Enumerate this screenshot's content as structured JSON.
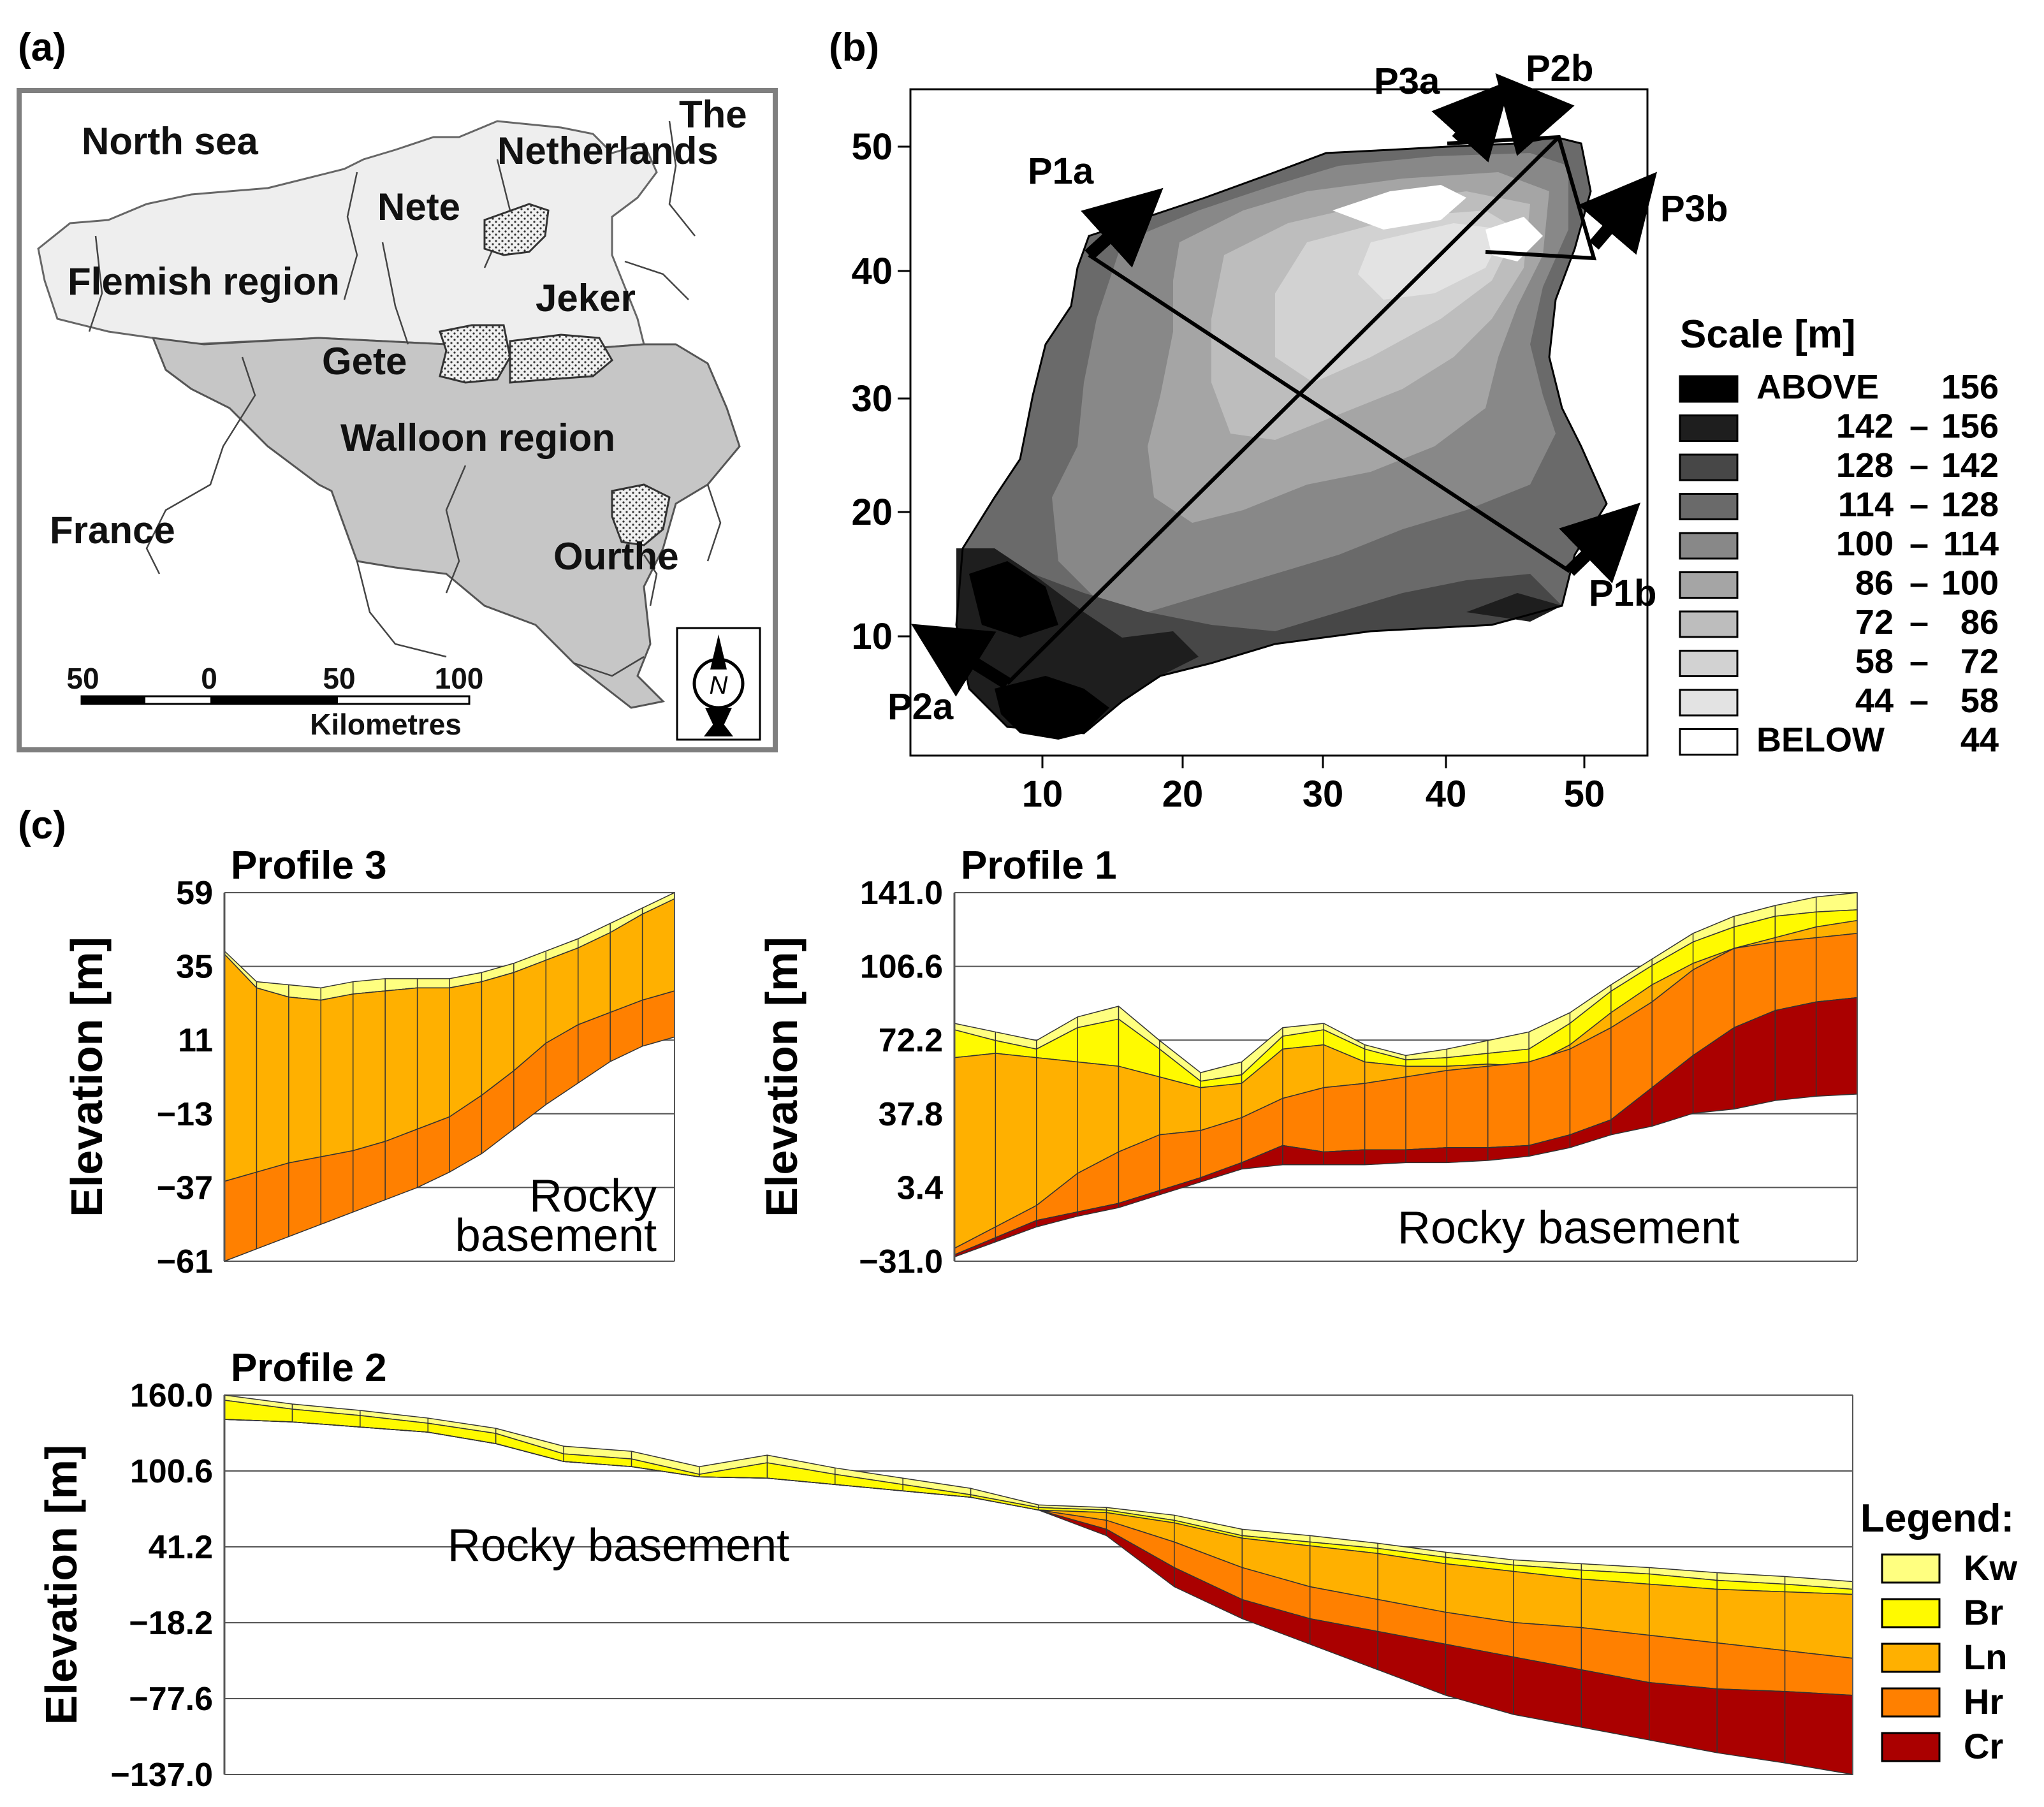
{
  "panel_labels": {
    "a": "(a)",
    "b": "(b)",
    "c": "(c)"
  },
  "colors": {
    "Kw": "#ffff80",
    "Br": "#fffa00",
    "Ln": "#ffb000",
    "Hr": "#ff8000",
    "Cr": "#aa0000",
    "flemish": "#eeeeee",
    "walloon": "#c6c6c6",
    "frame": "#7f7f7f"
  },
  "map_a": {
    "labels": {
      "north_sea": "North sea",
      "the": "The",
      "netherlands": "Netherlands",
      "nete": "Nete",
      "flemish": "Flemish region",
      "jeker": "Jeker",
      "gete": "Gete",
      "walloon": "Walloon region",
      "france": "France",
      "ourthe": "Ourthe"
    },
    "scale_ticks": [
      "50",
      "0",
      "50",
      "100"
    ],
    "scale_unit": "Kilometres",
    "north": "N"
  },
  "map_b": {
    "x_ticks": [
      "10",
      "20",
      "30",
      "40",
      "50"
    ],
    "y_ticks": [
      "10",
      "20",
      "30",
      "40",
      "50"
    ],
    "profile_ends": [
      "P1a",
      "P1b",
      "P2a",
      "P2b",
      "P3a",
      "P3b"
    ],
    "scale_title": "Scale [m]",
    "scale_items": [
      {
        "a": "ABOVE",
        "b": "156",
        "color": "#000000"
      },
      {
        "a": "142",
        "b": "156",
        "color": "#1e1e1e"
      },
      {
        "a": "128",
        "b": "142",
        "color": "#474747"
      },
      {
        "a": "114",
        "b": "128",
        "color": "#6a6a6a"
      },
      {
        "a": "100",
        "b": "114",
        "color": "#888888"
      },
      {
        "a": "86",
        "b": "100",
        "color": "#a5a5a5"
      },
      {
        "a": "72",
        "b": "86",
        "color": "#bdbdbd"
      },
      {
        "a": "58",
        "b": "72",
        "color": "#d2d2d2"
      },
      {
        "a": "44",
        "b": "58",
        "color": "#e3e3e3"
      },
      {
        "a": "BELOW",
        "b": "44",
        "color": "#ffffff"
      }
    ]
  },
  "chart_data": [
    {
      "type": "area",
      "title": "Profile 3",
      "ylabel": "Elevation [m]",
      "y_ticks": [
        "59",
        "35",
        "11",
        "−13",
        "−37",
        "−61"
      ],
      "ylim": [
        -61,
        59
      ],
      "annotation": [
        "Rocky",
        "basement"
      ],
      "layers": [
        "Kw",
        "Br",
        "Ln",
        "Hr"
      ],
      "surfaces": [
        [
          40,
          30,
          29,
          28,
          30,
          31,
          31,
          31,
          33,
          36,
          40,
          44,
          49,
          54,
          59
        ],
        [
          39,
          28,
          25,
          24,
          26,
          27,
          28,
          28,
          30,
          33,
          37,
          41,
          46,
          52,
          57
        ],
        [
          39,
          28,
          25,
          24,
          26,
          27,
          28,
          28,
          30,
          33,
          37,
          41,
          46,
          52,
          57
        ],
        [
          -35,
          -32,
          -29,
          -27,
          -25,
          -22,
          -18,
          -14,
          -7,
          1,
          10,
          16,
          20,
          24,
          27
        ],
        [
          -61,
          -57,
          -53,
          -49,
          -45,
          -41,
          -37,
          -32,
          -26,
          -18,
          -10,
          -3,
          4,
          9,
          12
        ]
      ]
    },
    {
      "type": "area",
      "title": "Profile 1",
      "ylabel": "Elevation [m]",
      "y_ticks": [
        "141.0",
        "106.6",
        "72.2",
        "37.8",
        "3.4",
        "−31.0"
      ],
      "ylim": [
        -31.0,
        141.0
      ],
      "annotation": [
        "Rocky basement"
      ],
      "layers": [
        "Kw",
        "Br",
        "Ln",
        "Hr",
        "Cr"
      ],
      "surfaces": [
        [
          80,
          76,
          72,
          83,
          88,
          72,
          57,
          62,
          78,
          80,
          70,
          65,
          68,
          72,
          76,
          85,
          98,
          110,
          122,
          130,
          135,
          139,
          141
        ],
        [
          77,
          72,
          68,
          78,
          82,
          68,
          53,
          56,
          74,
          77,
          68,
          63,
          64,
          66,
          68,
          80,
          95,
          107,
          118,
          125,
          130,
          132,
          133
        ],
        [
          64,
          66,
          64,
          62,
          60,
          55,
          50,
          52,
          68,
          70,
          62,
          60,
          60,
          61,
          60,
          70,
          85,
          98,
          108,
          115,
          120,
          125,
          128
        ],
        [
          -25,
          -15,
          -5,
          10,
          20,
          28,
          30,
          36,
          45,
          50,
          52,
          55,
          58,
          60,
          62,
          68,
          78,
          90,
          105,
          115,
          118,
          120,
          122
        ],
        [
          -28,
          -20,
          -12,
          -8,
          -4,
          2,
          8,
          15,
          23,
          20,
          21,
          21,
          22,
          22,
          23,
          28,
          35,
          50,
          65,
          78,
          86,
          90,
          92
        ],
        [
          -28,
          -20,
          -12,
          -8,
          -4,
          2,
          8,
          15,
          23,
          20,
          21,
          21,
          22,
          22,
          23,
          28,
          35,
          50,
          65,
          78,
          86,
          90,
          92
        ]
      ],
      "cr_bottom": [
        -29,
        -22,
        -15,
        -10,
        -6,
        0,
        6,
        12,
        14,
        14,
        14,
        15,
        15,
        16,
        18,
        22,
        28,
        32,
        38,
        40,
        44,
        46,
        47
      ]
    },
    {
      "type": "area",
      "title": "Profile 2",
      "ylabel": "Elevation [m]",
      "y_ticks": [
        "160.0",
        "100.6",
        "41.2",
        "−18.2",
        "−77.6",
        "−137.0"
      ],
      "ylim": [
        -137.0,
        160.0
      ],
      "annotation": [
        "Rocky basement"
      ],
      "layers": [
        "Kw",
        "Br",
        "Ln",
        "Hr",
        "Cr"
      ],
      "surfaces": [
        [
          160,
          153,
          148,
          142,
          134,
          120,
          116,
          104,
          113,
          103,
          95,
          87,
          74,
          72,
          66,
          55,
          50,
          44,
          37,
          31,
          28,
          25,
          21,
          18,
          14
        ],
        [
          156,
          149,
          144,
          138,
          130,
          114,
          110,
          98,
          107,
          98,
          90,
          82,
          72,
          70,
          62,
          50,
          45,
          40,
          33,
          27,
          23,
          20,
          15,
          12,
          8
        ],
        [
          141,
          139,
          135,
          131,
          122,
          108,
          104,
          96,
          95,
          90,
          85,
          80,
          70,
          68,
          60,
          48,
          42,
          36,
          28,
          22,
          16,
          12,
          8,
          6,
          4
        ],
        [
          141,
          139,
          135,
          131,
          122,
          108,
          104,
          96,
          95,
          90,
          85,
          80,
          70,
          62,
          45,
          25,
          10,
          0,
          -10,
          -18,
          -22,
          -28,
          -34,
          -40,
          -46
        ],
        [
          141,
          139,
          135,
          131,
          122,
          108,
          104,
          96,
          95,
          90,
          85,
          80,
          70,
          55,
          25,
          0,
          -15,
          -25,
          -35,
          -45,
          -55,
          -65,
          -70,
          -72,
          -75
        ],
        [
          141,
          139,
          135,
          131,
          122,
          108,
          104,
          96,
          95,
          90,
          85,
          80,
          70,
          50,
          10,
          -15,
          -35,
          -55,
          -75,
          -90,
          -100,
          -110,
          -120,
          -128,
          -137
        ]
      ]
    }
  ],
  "legend": {
    "title": "Legend:",
    "items": [
      "Kw",
      "Br",
      "Ln",
      "Hr",
      "Cr"
    ]
  }
}
